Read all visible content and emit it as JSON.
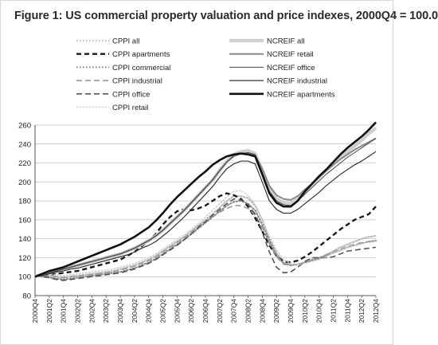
{
  "title": "Figure 1: US commercial property valuation and price indexes, 2000Q4 = 100.0",
  "chart_data": {
    "type": "line",
    "title": "Figure 1: US commercial property valuation and price indexes, 2000Q4 = 100.0",
    "xlabel": "",
    "ylabel": "",
    "ylim": [
      80,
      260
    ],
    "yticks": [
      80,
      100,
      120,
      140,
      160,
      180,
      200,
      220,
      240,
      260
    ],
    "grid": true,
    "legend_position": "top",
    "x": [
      "2000Q4",
      "2001Q1",
      "2001Q2",
      "2001Q3",
      "2001Q4",
      "2002Q1",
      "2002Q2",
      "2002Q3",
      "2002Q4",
      "2003Q1",
      "2003Q2",
      "2003Q3",
      "2003Q4",
      "2004Q1",
      "2004Q2",
      "2004Q3",
      "2004Q4",
      "2005Q1",
      "2005Q2",
      "2005Q3",
      "2005Q4",
      "2006Q1",
      "2006Q2",
      "2006Q3",
      "2006Q4",
      "2007Q1",
      "2007Q2",
      "2007Q3",
      "2007Q4",
      "2008Q1",
      "2008Q2",
      "2008Q3",
      "2008Q4",
      "2009Q1",
      "2009Q2",
      "2009Q3",
      "2009Q4",
      "2010Q1",
      "2010Q2",
      "2010Q3",
      "2010Q4",
      "2011Q1",
      "2011Q2",
      "2011Q3",
      "2011Q4",
      "2012Q1",
      "2012Q2",
      "2012Q3",
      "2012Q4"
    ],
    "x_tick_labels": [
      "2000Q4",
      "2001Q2",
      "2001Q4",
      "2002Q2",
      "2002Q4",
      "2003Q2",
      "2003Q4",
      "2004Q2",
      "2004Q4",
      "2005Q2",
      "2005Q4",
      "2006Q2",
      "2006Q4",
      "2007Q2",
      "2007Q4",
      "2008Q2",
      "2008Q4",
      "2009Q2",
      "2009Q4",
      "2010Q2",
      "2010Q4",
      "2011Q2",
      "2011Q4",
      "2012Q2",
      "2012Q4"
    ],
    "series": [
      {
        "name": "CPPI all",
        "color": "#bbbbbb",
        "dash": "dot",
        "width": 2.2,
        "values": [
          100,
          101,
          101,
          100,
          99,
          100,
          101,
          102,
          103,
          104,
          105,
          106,
          108,
          110,
          112,
          115,
          118,
          122,
          127,
          132,
          137,
          142,
          148,
          154,
          160,
          166,
          173,
          180,
          185,
          185,
          183,
          175,
          160,
          140,
          125,
          115,
          112,
          113,
          115,
          118,
          120,
          123,
          127,
          131,
          134,
          137,
          140,
          142,
          143
        ]
      },
      {
        "name": "CPPI apartments",
        "color": "#1a1a1a",
        "dash": "dash-bold",
        "width": 2.4,
        "values": [
          100,
          101,
          102,
          103,
          104,
          105,
          106,
          108,
          110,
          112,
          114,
          116,
          118,
          122,
          126,
          132,
          138,
          145,
          155,
          163,
          169,
          171,
          170,
          172,
          175,
          180,
          185,
          188,
          186,
          182,
          174,
          162,
          148,
          133,
          122,
          116,
          115,
          117,
          121,
          126,
          132,
          138,
          144,
          150,
          155,
          160,
          163,
          166,
          174
        ]
      },
      {
        "name": "CPPI commercial",
        "color": "#888888",
        "dash": "dot",
        "width": 2.0,
        "values": [
          100,
          100,
          99,
          98,
          97,
          98,
          99,
          100,
          101,
          102,
          103,
          104,
          105,
          107,
          109,
          112,
          115,
          119,
          124,
          129,
          134,
          139,
          145,
          151,
          157,
          163,
          169,
          175,
          179,
          180,
          177,
          170,
          155,
          138,
          123,
          114,
          112,
          113,
          115,
          117,
          119,
          122,
          125,
          128,
          131,
          133,
          135,
          137,
          138
        ]
      },
      {
        "name": "CPPI industrial",
        "color": "#999999",
        "dash": "longdash",
        "width": 1.6,
        "values": [
          100,
          100,
          100,
          100,
          99,
          100,
          101,
          101,
          102,
          103,
          104,
          105,
          107,
          109,
          111,
          114,
          117,
          121,
          126,
          131,
          136,
          141,
          147,
          153,
          158,
          163,
          168,
          172,
          175,
          175,
          172,
          165,
          152,
          135,
          121,
          113,
          112,
          113,
          115,
          118,
          120,
          123,
          126,
          129,
          132,
          134,
          136,
          137,
          138
        ]
      },
      {
        "name": "CPPI office",
        "color": "#555555",
        "dash": "longdash",
        "width": 1.6,
        "values": [
          100,
          100,
          99,
          97,
          96,
          97,
          98,
          99,
          100,
          101,
          102,
          103,
          104,
          106,
          108,
          111,
          114,
          118,
          123,
          128,
          133,
          139,
          145,
          152,
          158,
          165,
          171,
          177,
          182,
          181,
          176,
          166,
          147,
          126,
          110,
          104,
          105,
          110,
          116,
          120,
          120,
          120,
          121,
          124,
          127,
          128,
          129,
          130,
          131
        ]
      },
      {
        "name": "CPPI retail",
        "color": "#cccccc",
        "dash": "dot",
        "width": 1.4,
        "values": [
          100,
          101,
          102,
          102,
          101,
          102,
          103,
          104,
          105,
          106,
          107,
          108,
          110,
          112,
          114,
          117,
          120,
          124,
          129,
          134,
          139,
          144,
          150,
          156,
          163,
          170,
          177,
          184,
          190,
          191,
          186,
          176,
          160,
          143,
          128,
          118,
          114,
          113,
          114,
          116,
          118,
          121,
          125,
          128,
          131,
          133,
          135,
          136,
          137
        ]
      },
      {
        "name": "NCREIF all",
        "color": "#cfcfcf",
        "dash": "solid",
        "width": 4.2,
        "values": [
          100,
          102,
          104,
          106,
          108,
          110,
          112,
          114,
          116,
          118,
          120,
          122,
          124,
          127,
          130,
          134,
          138,
          143,
          149,
          156,
          163,
          170,
          178,
          186,
          194,
          202,
          212,
          222,
          229,
          232,
          233,
          230,
          212,
          192,
          182,
          178,
          177,
          182,
          190,
          197,
          205,
          212,
          219,
          226,
          232,
          238,
          244,
          251,
          257
        ]
      },
      {
        "name": "NCREIF retail",
        "color": "#8a8a8a",
        "dash": "solid",
        "width": 2.0,
        "values": [
          100,
          102,
          104,
          106,
          108,
          110,
          112,
          114,
          116,
          118,
          120,
          122,
          124,
          127,
          130,
          134,
          138,
          143,
          149,
          156,
          163,
          170,
          178,
          186,
          194,
          202,
          212,
          221,
          227,
          230,
          230,
          228,
          214,
          196,
          186,
          182,
          181,
          185,
          192,
          198,
          205,
          212,
          218,
          224,
          229,
          234,
          238,
          242,
          246
        ]
      },
      {
        "name": "NCREIF office",
        "color": "#4a4a4a",
        "dash": "solid",
        "width": 1.0,
        "values": [
          100,
          102,
          104,
          106,
          108,
          110,
          112,
          114,
          116,
          118,
          120,
          122,
          124,
          127,
          130,
          134,
          138,
          143,
          149,
          156,
          163,
          170,
          178,
          186,
          194,
          202,
          212,
          221,
          228,
          230,
          231,
          229,
          210,
          190,
          180,
          176,
          175,
          180,
          187,
          194,
          201,
          208,
          214,
          220,
          226,
          231,
          236,
          241,
          246
        ]
      },
      {
        "name": "NCREIF industrial",
        "color": "#333333",
        "dash": "solid",
        "width": 1.2,
        "values": [
          100,
          101,
          103,
          105,
          106,
          108,
          109,
          111,
          113,
          115,
          117,
          119,
          121,
          123,
          126,
          130,
          133,
          137,
          143,
          149,
          156,
          163,
          171,
          179,
          187,
          195,
          205,
          214,
          219,
          222,
          222,
          219,
          200,
          180,
          171,
          167,
          167,
          171,
          177,
          183,
          189,
          196,
          202,
          208,
          213,
          218,
          222,
          227,
          232
        ]
      },
      {
        "name": "NCREIF apartments",
        "color": "#111111",
        "dash": "solid",
        "width": 2.6,
        "values": [
          100,
          103,
          106,
          108,
          110,
          113,
          116,
          119,
          122,
          125,
          128,
          131,
          134,
          138,
          142,
          147,
          152,
          159,
          167,
          176,
          184,
          191,
          198,
          205,
          211,
          218,
          223,
          227,
          229,
          230,
          229,
          227,
          208,
          188,
          178,
          174,
          174,
          180,
          190,
          198,
          206,
          213,
          221,
          229,
          236,
          242,
          248,
          255,
          263
        ]
      }
    ]
  }
}
